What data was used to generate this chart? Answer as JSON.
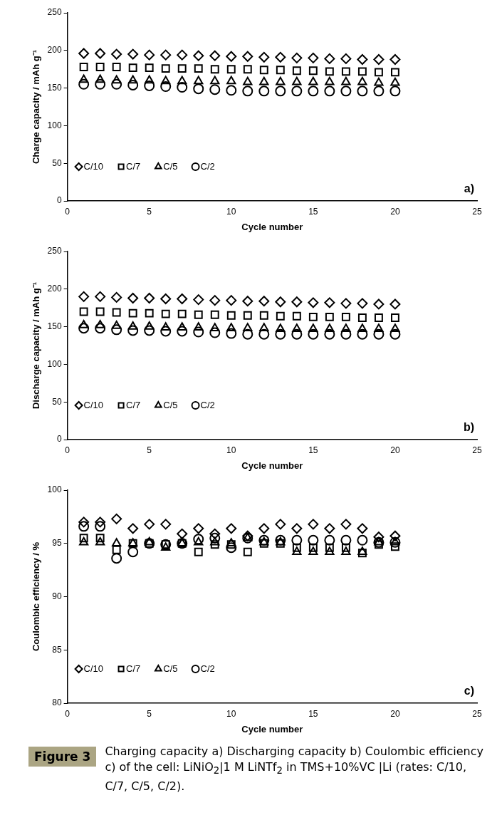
{
  "chart_data": [
    {
      "type": "scatter",
      "xlabel": "Cycle number",
      "ylabel": "Charge capacity / mAh g⁻¹",
      "x": [
        1,
        2,
        3,
        4,
        5,
        6,
        7,
        8,
        9,
        10,
        11,
        12,
        13,
        14,
        15,
        16,
        17,
        18,
        19,
        20
      ],
      "xlim": [
        0,
        25
      ],
      "xticks": [
        0,
        5,
        10,
        15,
        20,
        25
      ],
      "ylim": [
        0,
        250
      ],
      "yticks": [
        0,
        50,
        100,
        150,
        200,
        250
      ],
      "grid": false,
      "legend": "bottom left",
      "annotations": [
        "a)"
      ],
      "series": [
        {
          "name": "C/10",
          "color": "#000000",
          "marker": "diamond",
          "values": [
            196,
            196,
            195,
            195,
            194,
            194,
            194,
            193,
            193,
            192,
            192,
            191,
            191,
            190,
            190,
            189,
            189,
            188,
            188,
            188
          ]
        },
        {
          "name": "C/7",
          "color": "#000000",
          "marker": "square",
          "values": [
            178,
            178,
            178,
            177,
            177,
            176,
            176,
            176,
            175,
            175,
            175,
            174,
            174,
            173,
            173,
            172,
            172,
            172,
            171,
            171
          ]
        },
        {
          "name": "C/5",
          "color": "#000000",
          "marker": "triangle",
          "values": [
            161,
            161,
            160,
            160,
            160,
            159,
            159,
            159,
            159,
            159,
            158,
            158,
            158,
            158,
            158,
            158,
            158,
            158,
            157,
            157
          ]
        },
        {
          "name": "C/2",
          "color": "#000000",
          "marker": "circle",
          "values": [
            155,
            155,
            155,
            154,
            153,
            152,
            151,
            149,
            148,
            147,
            146,
            146,
            146,
            146,
            146,
            146,
            146,
            146,
            146,
            146
          ]
        }
      ]
    },
    {
      "type": "scatter",
      "xlabel": "Cycle number",
      "ylabel": "Discharge capacity / mAh g⁻¹",
      "x": [
        1,
        2,
        3,
        4,
        5,
        6,
        7,
        8,
        9,
        10,
        11,
        12,
        13,
        14,
        15,
        16,
        17,
        18,
        19,
        20
      ],
      "xlim": [
        0,
        25
      ],
      "xticks": [
        0,
        5,
        10,
        15,
        20,
        25
      ],
      "ylim": [
        0,
        250
      ],
      "yticks": [
        0,
        50,
        100,
        150,
        200,
        250
      ],
      "grid": false,
      "legend": "bottom left",
      "annotations": [
        "b)"
      ],
      "series": [
        {
          "name": "C/10",
          "color": "#000000",
          "marker": "diamond",
          "values": [
            190,
            190,
            189,
            188,
            188,
            187,
            187,
            186,
            185,
            185,
            184,
            184,
            183,
            183,
            182,
            182,
            181,
            181,
            180,
            180
          ]
        },
        {
          "name": "C/7",
          "color": "#000000",
          "marker": "square",
          "values": [
            170,
            170,
            169,
            168,
            168,
            167,
            167,
            166,
            166,
            165,
            165,
            165,
            164,
            164,
            163,
            163,
            163,
            162,
            162,
            162
          ]
        },
        {
          "name": "C/5",
          "color": "#000000",
          "marker": "triangle",
          "values": [
            152,
            152,
            151,
            150,
            150,
            149,
            149,
            149,
            148,
            148,
            148,
            148,
            147,
            147,
            147,
            147,
            147,
            147,
            147,
            147
          ]
        },
        {
          "name": "C/2",
          "color": "#000000",
          "marker": "circle",
          "values": [
            148,
            148,
            146,
            145,
            145,
            144,
            144,
            143,
            142,
            141,
            140,
            140,
            140,
            140,
            140,
            140,
            140,
            140,
            140,
            140
          ]
        }
      ]
    },
    {
      "type": "scatter",
      "xlabel": "Cycle number",
      "ylabel": "Coulombic efficiency / %",
      "x": [
        1,
        2,
        3,
        4,
        5,
        6,
        7,
        8,
        9,
        10,
        11,
        12,
        13,
        14,
        15,
        16,
        17,
        18,
        19,
        20
      ],
      "xlim": [
        0,
        25
      ],
      "xticks": [
        0,
        5,
        10,
        15,
        20,
        25
      ],
      "ylim": [
        80,
        100
      ],
      "yticks": [
        80,
        85,
        90,
        95,
        100
      ],
      "grid": false,
      "legend": "bottom left",
      "annotations": [
        "c)",
        "Figure 3",
        "Charging capacity a) Discharging capacity b) Coulombic efficiency c) of the cell: LiNiO$_{2}$|1 M LiNTf$_{2}$ in TMS+10%VC |Li (rates: C/10, C/7, C/5, C/2)."
      ],
      "series": [
        {
          "name": "C/10",
          "color": "#000000",
          "marker": "diamond",
          "values": [
            97,
            97,
            97.3,
            96.4,
            96.8,
            96.8,
            95.9,
            96.4,
            95.9,
            96.4,
            95.7,
            96.4,
            96.8,
            96.4,
            96.8,
            96.4,
            96.8,
            96.4,
            95.6,
            95.7
          ]
        },
        {
          "name": "C/7",
          "color": "#000000",
          "marker": "square",
          "values": [
            95.5,
            95.5,
            94.4,
            95,
            95,
            94.9,
            95,
            94.2,
            94.9,
            94.9,
            94.2,
            95,
            95,
            94.6,
            94.6,
            94.6,
            94.6,
            94.1,
            94.9,
            94.7
          ]
        },
        {
          "name": "C/5",
          "color": "#000000",
          "marker": "triangle",
          "values": [
            95.1,
            95.1,
            95,
            95,
            95.1,
            94.6,
            95,
            95.1,
            95.1,
            95,
            95.5,
            95.1,
            95.1,
            94.2,
            94.2,
            94.2,
            94.2,
            94.2,
            95.1,
            95.1
          ]
        },
        {
          "name": "C/2",
          "color": "#000000",
          "marker": "circle",
          "values": [
            96.6,
            96.6,
            93.6,
            94.2,
            95,
            94.9,
            95,
            95.4,
            95.5,
            94.6,
            95.5,
            95.3,
            95.3,
            95.3,
            95.3,
            95.3,
            95.3,
            95.3,
            95.1,
            95.1
          ]
        }
      ]
    }
  ]
}
